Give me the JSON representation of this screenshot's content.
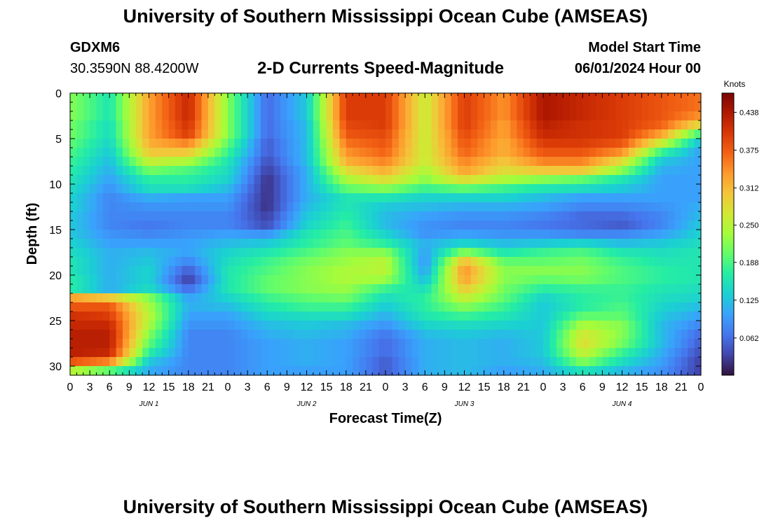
{
  "header": {
    "title": "University of Southern Mississippi Ocean Cube (AMSEAS)",
    "station": "GDXM6",
    "coords": "30.3590N  88.4200W",
    "subtitle": "2-D Currents Speed-Magnitude",
    "start_label": "Model Start Time",
    "start_value": "06/01/2024 Hour 00"
  },
  "footer": {
    "title": "University of Southern Mississippi Ocean Cube (AMSEAS)"
  },
  "colors": {
    "scale": [
      "#30123b",
      "#4145ab",
      "#4675ed",
      "#39a2fc",
      "#1bcfd4",
      "#24eca6",
      "#61fc6c",
      "#a4fc3b",
      "#d1e834",
      "#f3c63a",
      "#fe9b2d",
      "#f36315",
      "#d93806",
      "#b11901",
      "#7a0402"
    ]
  },
  "chart_data": {
    "type": "heatmap",
    "title": "2-D Currents Speed-Magnitude",
    "xlabel": "Forecast Time(Z)",
    "ylabel": "Depth (ft)",
    "x_ticks": [
      "0",
      "3",
      "6",
      "9",
      "12",
      "15",
      "18",
      "21",
      "0",
      "3",
      "6",
      "9",
      "12",
      "15",
      "18",
      "21",
      "0",
      "3",
      "6",
      "9",
      "12",
      "15",
      "18",
      "21",
      "0",
      "3",
      "6",
      "9",
      "12",
      "15",
      "18",
      "21",
      "0"
    ],
    "x_hours_range": [
      0,
      96
    ],
    "day_labels": [
      {
        "label": "JUN 1",
        "hour": 12
      },
      {
        "label": "JUN 2",
        "hour": 36
      },
      {
        "label": "JUN 3",
        "hour": 60
      },
      {
        "label": "JUN 4",
        "hour": 84
      }
    ],
    "y_ticks": [
      "0",
      "5",
      "10",
      "15",
      "20",
      "25",
      "30"
    ],
    "ylim": [
      0,
      31
    ],
    "colorbar": {
      "unit": "Knots",
      "min": 0,
      "max": 0.47,
      "ticks": [
        "0.438",
        "0.375",
        "0.312",
        "0.250",
        "0.188",
        "0.125",
        "0.062"
      ]
    },
    "depth_levels_ft": [
      0.5,
      1.5,
      2.5,
      3.5,
      4.5,
      5.5,
      6.5,
      7.5,
      8.5,
      9.5,
      10.5,
      11.5,
      12.5,
      13.5,
      14.5,
      15.5,
      16.5,
      17.5,
      18.5,
      19.5,
      20.5,
      21.5,
      22.5,
      23.5,
      24.5,
      25.5,
      26.5,
      27.5,
      28.5,
      29.5,
      30.5
    ],
    "forecast_hours": [
      0,
      6,
      12,
      18,
      24,
      30,
      36,
      42,
      48,
      54,
      60,
      66,
      72,
      78,
      84,
      90,
      96
    ],
    "speed_knots": [
      [
        0.22,
        0.16,
        0.33,
        0.42,
        0.22,
        0.06,
        0.13,
        0.4,
        0.4,
        0.26,
        0.4,
        0.34,
        0.44,
        0.42,
        0.4,
        0.38,
        0.36
      ],
      [
        0.22,
        0.16,
        0.33,
        0.42,
        0.22,
        0.06,
        0.13,
        0.4,
        0.4,
        0.26,
        0.4,
        0.34,
        0.44,
        0.42,
        0.4,
        0.38,
        0.36
      ],
      [
        0.22,
        0.16,
        0.33,
        0.42,
        0.22,
        0.06,
        0.13,
        0.4,
        0.4,
        0.26,
        0.4,
        0.34,
        0.44,
        0.42,
        0.4,
        0.38,
        0.34
      ],
      [
        0.21,
        0.15,
        0.33,
        0.41,
        0.22,
        0.06,
        0.12,
        0.39,
        0.4,
        0.26,
        0.4,
        0.33,
        0.43,
        0.41,
        0.4,
        0.37,
        0.28
      ],
      [
        0.21,
        0.15,
        0.33,
        0.4,
        0.22,
        0.06,
        0.12,
        0.38,
        0.39,
        0.26,
        0.39,
        0.33,
        0.42,
        0.41,
        0.4,
        0.33,
        0.18
      ],
      [
        0.2,
        0.14,
        0.32,
        0.35,
        0.2,
        0.05,
        0.12,
        0.36,
        0.38,
        0.26,
        0.38,
        0.32,
        0.4,
        0.4,
        0.38,
        0.26,
        0.12
      ],
      [
        0.19,
        0.13,
        0.3,
        0.3,
        0.18,
        0.05,
        0.12,
        0.34,
        0.37,
        0.26,
        0.37,
        0.32,
        0.38,
        0.38,
        0.34,
        0.18,
        0.1
      ],
      [
        0.18,
        0.12,
        0.26,
        0.24,
        0.16,
        0.04,
        0.12,
        0.32,
        0.35,
        0.26,
        0.35,
        0.3,
        0.35,
        0.35,
        0.28,
        0.13,
        0.1
      ],
      [
        0.17,
        0.11,
        0.21,
        0.19,
        0.15,
        0.03,
        0.11,
        0.28,
        0.32,
        0.24,
        0.33,
        0.28,
        0.3,
        0.3,
        0.22,
        0.11,
        0.1
      ],
      [
        0.16,
        0.1,
        0.17,
        0.17,
        0.14,
        0.02,
        0.11,
        0.24,
        0.28,
        0.22,
        0.28,
        0.24,
        0.22,
        0.2,
        0.16,
        0.1,
        0.1
      ],
      [
        0.15,
        0.09,
        0.15,
        0.15,
        0.12,
        0.02,
        0.11,
        0.2,
        0.22,
        0.18,
        0.2,
        0.18,
        0.16,
        0.15,
        0.13,
        0.1,
        0.1
      ],
      [
        0.14,
        0.08,
        0.11,
        0.1,
        0.1,
        0.02,
        0.11,
        0.16,
        0.16,
        0.14,
        0.14,
        0.14,
        0.12,
        0.1,
        0.1,
        0.1,
        0.1
      ],
      [
        0.14,
        0.08,
        0.09,
        0.09,
        0.09,
        0.02,
        0.12,
        0.16,
        0.13,
        0.12,
        0.11,
        0.11,
        0.1,
        0.08,
        0.08,
        0.09,
        0.11
      ],
      [
        0.13,
        0.08,
        0.08,
        0.08,
        0.08,
        0.03,
        0.13,
        0.17,
        0.12,
        0.1,
        0.09,
        0.09,
        0.08,
        0.06,
        0.06,
        0.08,
        0.12
      ],
      [
        0.13,
        0.08,
        0.07,
        0.08,
        0.08,
        0.04,
        0.14,
        0.18,
        0.12,
        0.09,
        0.08,
        0.08,
        0.07,
        0.06,
        0.05,
        0.08,
        0.13
      ],
      [
        0.13,
        0.09,
        0.08,
        0.09,
        0.1,
        0.09,
        0.16,
        0.19,
        0.14,
        0.09,
        0.1,
        0.09,
        0.09,
        0.08,
        0.08,
        0.1,
        0.14
      ],
      [
        0.14,
        0.1,
        0.1,
        0.1,
        0.12,
        0.13,
        0.17,
        0.2,
        0.17,
        0.11,
        0.14,
        0.12,
        0.13,
        0.14,
        0.12,
        0.13,
        0.15
      ],
      [
        0.15,
        0.11,
        0.12,
        0.1,
        0.14,
        0.16,
        0.19,
        0.22,
        0.22,
        0.1,
        0.22,
        0.16,
        0.18,
        0.19,
        0.16,
        0.15,
        0.16
      ],
      [
        0.16,
        0.11,
        0.13,
        0.08,
        0.15,
        0.18,
        0.21,
        0.23,
        0.25,
        0.09,
        0.31,
        0.2,
        0.2,
        0.21,
        0.18,
        0.16,
        0.16
      ],
      [
        0.16,
        0.11,
        0.14,
        0.05,
        0.16,
        0.19,
        0.22,
        0.24,
        0.25,
        0.1,
        0.34,
        0.22,
        0.22,
        0.22,
        0.19,
        0.17,
        0.16
      ],
      [
        0.17,
        0.11,
        0.14,
        0.03,
        0.16,
        0.2,
        0.22,
        0.24,
        0.23,
        0.12,
        0.33,
        0.22,
        0.2,
        0.21,
        0.19,
        0.17,
        0.16
      ],
      [
        0.17,
        0.11,
        0.15,
        0.06,
        0.16,
        0.2,
        0.22,
        0.23,
        0.18,
        0.15,
        0.3,
        0.21,
        0.17,
        0.18,
        0.18,
        0.16,
        0.15
      ],
      [
        0.33,
        0.3,
        0.22,
        0.1,
        0.14,
        0.18,
        0.2,
        0.21,
        0.15,
        0.17,
        0.26,
        0.2,
        0.14,
        0.17,
        0.18,
        0.15,
        0.14
      ],
      [
        0.38,
        0.38,
        0.24,
        0.11,
        0.12,
        0.16,
        0.18,
        0.18,
        0.13,
        0.17,
        0.22,
        0.18,
        0.13,
        0.17,
        0.19,
        0.14,
        0.12
      ],
      [
        0.41,
        0.4,
        0.25,
        0.1,
        0.1,
        0.14,
        0.15,
        0.15,
        0.11,
        0.16,
        0.18,
        0.16,
        0.13,
        0.2,
        0.2,
        0.13,
        0.1
      ],
      [
        0.42,
        0.42,
        0.24,
        0.09,
        0.09,
        0.12,
        0.13,
        0.12,
        0.09,
        0.14,
        0.15,
        0.14,
        0.13,
        0.24,
        0.22,
        0.12,
        0.08
      ],
      [
        0.43,
        0.43,
        0.22,
        0.08,
        0.08,
        0.11,
        0.12,
        0.11,
        0.07,
        0.12,
        0.13,
        0.12,
        0.13,
        0.27,
        0.22,
        0.12,
        0.06
      ],
      [
        0.43,
        0.43,
        0.2,
        0.08,
        0.08,
        0.1,
        0.11,
        0.1,
        0.06,
        0.11,
        0.12,
        0.11,
        0.13,
        0.28,
        0.21,
        0.12,
        0.05
      ],
      [
        0.43,
        0.42,
        0.17,
        0.08,
        0.08,
        0.1,
        0.11,
        0.1,
        0.06,
        0.11,
        0.12,
        0.11,
        0.13,
        0.26,
        0.18,
        0.11,
        0.04
      ],
      [
        0.38,
        0.35,
        0.13,
        0.08,
        0.08,
        0.1,
        0.11,
        0.1,
        0.05,
        0.11,
        0.12,
        0.11,
        0.12,
        0.22,
        0.15,
        0.1,
        0.03
      ],
      [
        0.25,
        0.2,
        0.11,
        0.08,
        0.08,
        0.1,
        0.1,
        0.1,
        0.05,
        0.11,
        0.12,
        0.1,
        0.11,
        0.16,
        0.12,
        0.09,
        0.03
      ]
    ]
  }
}
